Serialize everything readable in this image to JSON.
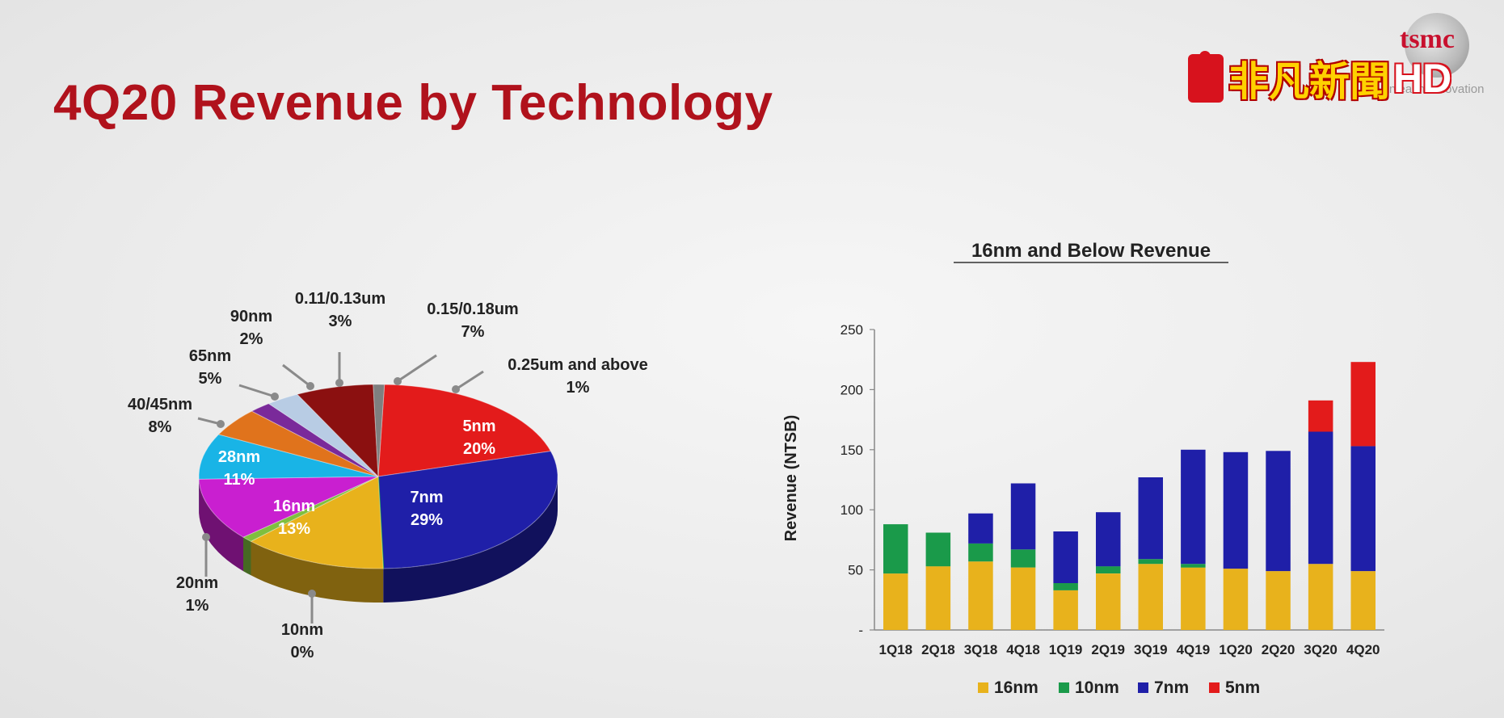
{
  "page": {
    "title": "4Q20 Revenue by Technology"
  },
  "branding": {
    "station_text": "非凡新聞",
    "station_hd": "HD",
    "company_logo_text": "tsmc",
    "company_tagline": "Unleash Innovation"
  },
  "chart_data": [
    {
      "type": "pie",
      "title": "",
      "slices": [
        {
          "label": "5nm",
          "value": 20,
          "value_label": "20%",
          "color": "#e31b1b"
        },
        {
          "label": "7nm",
          "value": 29,
          "value_label": "29%",
          "color": "#1f1fa8"
        },
        {
          "label": "10nm",
          "value": 0,
          "value_label": "0%",
          "color": "#1a9a4a"
        },
        {
          "label": "16nm",
          "value": 13,
          "value_label": "13%",
          "color": "#e8b21c"
        },
        {
          "label": "20nm",
          "value": 1,
          "value_label": "1%",
          "color": "#7fbf3f"
        },
        {
          "label": "28nm",
          "value": 11,
          "value_label": "11%",
          "color": "#c91fd0"
        },
        {
          "label": "40/45nm",
          "value": 8,
          "value_label": "8%",
          "color": "#19b4e6"
        },
        {
          "label": "65nm",
          "value": 5,
          "value_label": "5%",
          "color": "#e0731c"
        },
        {
          "label": "90nm",
          "value": 2,
          "value_label": "2%",
          "color": "#7a2a9a"
        },
        {
          "label": "0.11/0.13um",
          "value": 3,
          "value_label": "3%",
          "color": "#b8cce4"
        },
        {
          "label": "0.15/0.18um",
          "value": 7,
          "value_label": "7%",
          "color": "#8b1010"
        },
        {
          "label": "0.25um and above",
          "value": 1,
          "value_label": "1%",
          "color": "#7f7f7f"
        }
      ]
    },
    {
      "type": "bar",
      "stacked": true,
      "title": "16nm and Below Revenue",
      "xlabel": "",
      "ylabel": "Revenue (NTSB)",
      "ylim": [
        0,
        250
      ],
      "yticks": [
        0,
        50,
        100,
        150,
        200,
        250
      ],
      "ytick_labels": [
        "-",
        "50",
        "100",
        "150",
        "200",
        "250"
      ],
      "grid": false,
      "legend": "bottom",
      "categories": [
        "1Q18",
        "2Q18",
        "3Q18",
        "4Q18",
        "1Q19",
        "2Q19",
        "3Q19",
        "4Q19",
        "1Q20",
        "2Q20",
        "3Q20",
        "4Q20"
      ],
      "series": [
        {
          "name": "16nm",
          "color": "#e8b21c",
          "values": [
            47,
            53,
            57,
            52,
            33,
            47,
            55,
            52,
            51,
            49,
            55,
            49
          ]
        },
        {
          "name": "10nm",
          "color": "#1a9a4a",
          "values": [
            41,
            28,
            15,
            15,
            6,
            6,
            4,
            3,
            0,
            0,
            0,
            0
          ]
        },
        {
          "name": "7nm",
          "color": "#1f1fa8",
          "values": [
            0,
            0,
            25,
            55,
            43,
            45,
            68,
            95,
            97,
            100,
            110,
            104
          ]
        },
        {
          "name": "5nm",
          "color": "#e31b1b",
          "values": [
            0,
            0,
            0,
            0,
            0,
            0,
            0,
            0,
            0,
            0,
            26,
            70
          ]
        }
      ]
    }
  ]
}
